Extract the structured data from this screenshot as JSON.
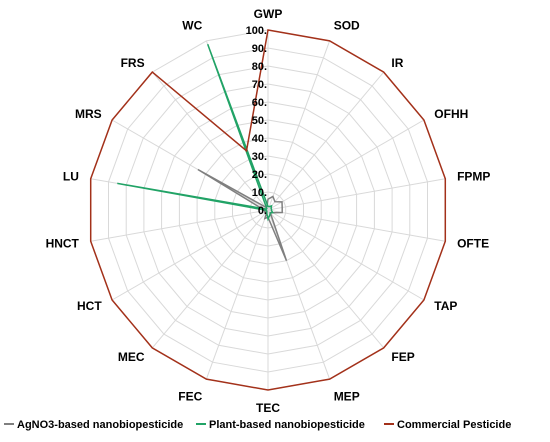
{
  "chart_data": {
    "type": "radar",
    "axes": [
      "GWP",
      "SOD",
      "IR",
      "OFHH",
      "FPMP",
      "OFTE",
      "TAP",
      "FEP",
      "MEP",
      "TEC",
      "FEC",
      "MEC",
      "HCT",
      "HNCT",
      "LU",
      "MRS",
      "FRS",
      "WC"
    ],
    "rlim": [
      0,
      100
    ],
    "ticks": [
      "0.",
      "10.",
      "20.",
      "30.",
      "40.",
      "50.",
      "60.",
      "70.",
      "80.",
      "90.",
      "100."
    ],
    "grid": true,
    "legend_position": "bottom",
    "series": [
      {
        "name": "AgNO3-based nanobiopesticide",
        "color": "#7f7f7f",
        "values": [
          6,
          8,
          6,
          9,
          8,
          8,
          3,
          2,
          30,
          4,
          5,
          1,
          2,
          2,
          3,
          45,
          2,
          2
        ]
      },
      {
        "name": "Plant-based nanobiopesticide",
        "color": "#21a366",
        "values": [
          2,
          2,
          3,
          2,
          2,
          2,
          3,
          2,
          3,
          5,
          2,
          1,
          1,
          1,
          85,
          1,
          1,
          98
        ]
      },
      {
        "name": "Commercial Pesticide",
        "color": "#a3311a",
        "values": [
          100,
          100,
          100,
          100,
          100,
          100,
          100,
          100,
          100,
          100,
          100,
          100,
          100,
          100,
          100,
          100,
          100,
          35
        ]
      }
    ]
  }
}
